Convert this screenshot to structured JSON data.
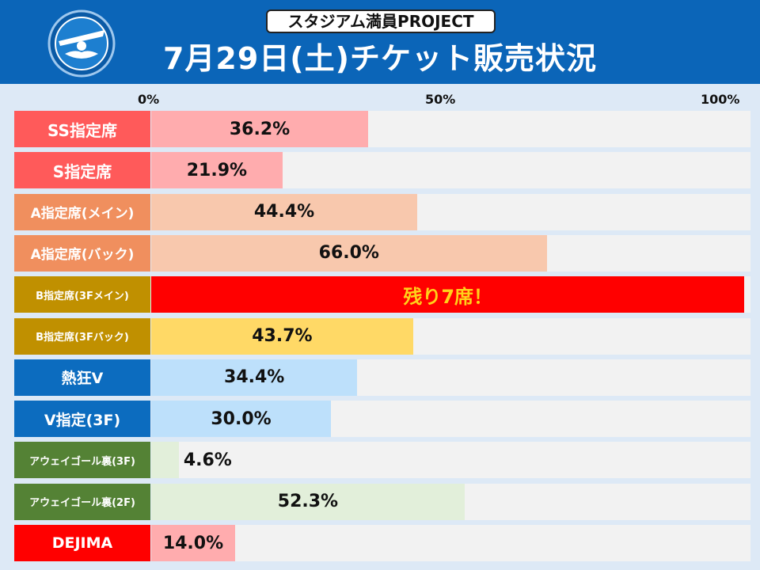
{
  "header": {
    "badge": "スタジアム満員PROJECT",
    "title": "7月29日(土)チケット販売状況"
  },
  "colors": {
    "header_bg": "#0b65b8",
    "page_bg": "#dde9f6",
    "track": "#f2f2f2",
    "sold_out_text": "#ffd21a"
  },
  "chart_data": {
    "type": "bar",
    "orientation": "horizontal",
    "xlim": [
      0,
      100
    ],
    "x_ticks": [
      "0%",
      "50%",
      "100%"
    ],
    "categories": [
      "SS指定席",
      "S指定席",
      "A指定席(メイン)",
      "A指定席(バック)",
      "B指定席(3Fメイン)",
      "B指定席(3Fバック)",
      "熱狂V",
      "V指定(3F)",
      "アウェイゴール裏(3F)",
      "アウェイゴール裏(2F)",
      "DEJIMA"
    ],
    "values": [
      36.2,
      21.9,
      44.4,
      66.0,
      99,
      43.7,
      34.4,
      30.0,
      4.6,
      52.3,
      14.0
    ],
    "value_labels": [
      "36.2%",
      "21.9%",
      "44.4%",
      "66.0%",
      "残り7席！",
      "43.7%",
      "34.4%",
      "30.0%",
      "4.6%",
      "52.3%",
      "14.0%"
    ],
    "label_colors": [
      "#ff5a5a",
      "#ff5a5a",
      "#f08f5e",
      "#f08f5e",
      "#c09000",
      "#c09000",
      "#0c6cbf",
      "#0c6cbf",
      "#548235",
      "#548235",
      "#ff0000"
    ],
    "bar_colors": [
      "#ffacae",
      "#ffacae",
      "#f8c8ad",
      "#f8c8ad",
      "#ff0000",
      "#ffd966",
      "#bde0fb",
      "#bde0fb",
      "#e2efda",
      "#e2efda",
      "#ffacae"
    ]
  }
}
